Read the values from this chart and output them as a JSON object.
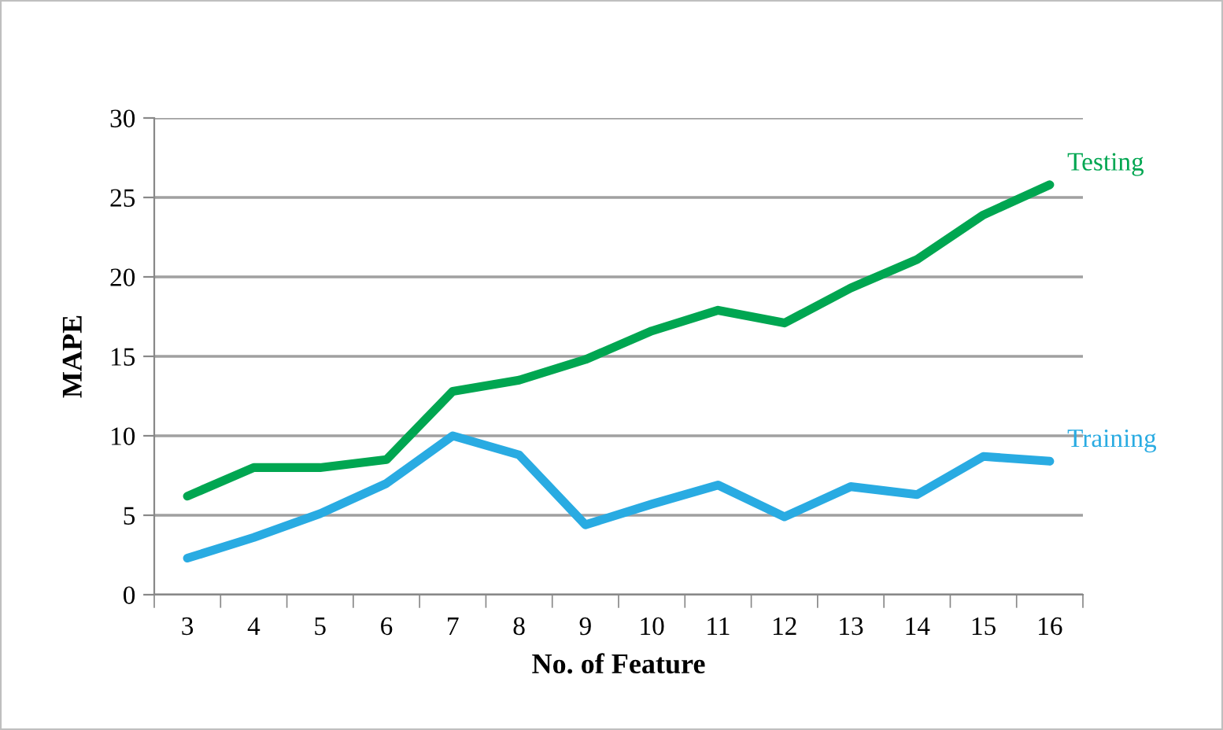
{
  "chart_data": {
    "type": "line",
    "xlabel": "No. of Feature",
    "ylabel": "MAPE",
    "categories": [
      "3",
      "4",
      "5",
      "6",
      "7",
      "8",
      "9",
      "10",
      "11",
      "12",
      "13",
      "14",
      "15",
      "16"
    ],
    "series": [
      {
        "name": "Testing",
        "color": "#00a651",
        "values": [
          6.2,
          8.0,
          8.0,
          8.5,
          12.8,
          13.5,
          14.8,
          16.6,
          17.9,
          17.1,
          19.3,
          21.1,
          23.9,
          25.8
        ]
      },
      {
        "name": "Training",
        "color": "#29abe2",
        "values": [
          2.3,
          3.6,
          5.1,
          7.0,
          10.0,
          8.8,
          4.4,
          5.7,
          6.9,
          4.9,
          6.8,
          6.3,
          8.7,
          8.4
        ]
      }
    ],
    "ylim": [
      0,
      30
    ],
    "yticks": [
      0,
      5,
      10,
      15,
      20,
      25,
      30
    ],
    "grid": "y",
    "legend": false,
    "marker": "none",
    "line_style": "solid"
  }
}
